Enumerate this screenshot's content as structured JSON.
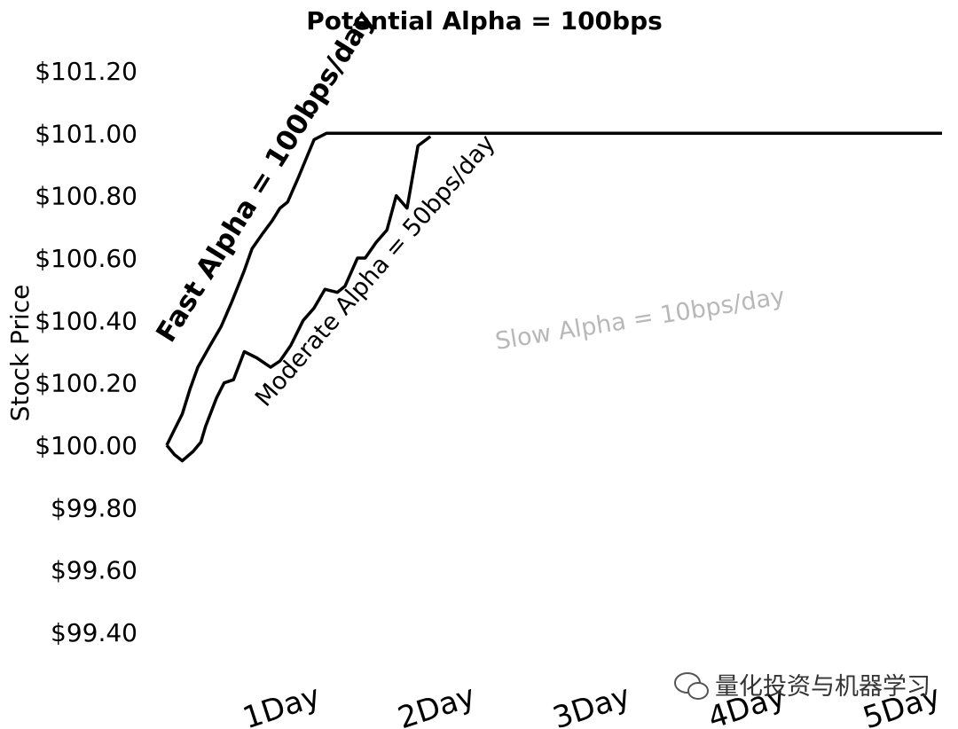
{
  "chart_data": {
    "type": "line",
    "title": "Potential Alpha = 100bps",
    "ylabel": "Stock Price",
    "xlabel": "",
    "ylim": [
      99.4,
      101.2
    ],
    "xlim": [
      0,
      5
    ],
    "y_ticks": [
      101.2,
      101.0,
      100.8,
      100.6,
      100.4,
      100.2,
      100.0,
      99.8,
      99.6,
      99.4
    ],
    "y_tick_labels": [
      "$101.20",
      "$101.00",
      "$100.80",
      "$100.60",
      "$100.40",
      "$100.20",
      "$100.00",
      "$99.80",
      "$99.60",
      "$99.40"
    ],
    "x_tick_labels": [
      "1Day",
      "2Day",
      "3Day",
      "4Day",
      "5Day"
    ],
    "x_tick_values": [
      1,
      2,
      3,
      4,
      5
    ],
    "grid": false,
    "series": [
      {
        "values": [
          [
            0.0,
            100.0
          ],
          [
            0.05,
            100.05
          ],
          [
            0.1,
            100.1
          ],
          [
            0.15,
            100.18
          ],
          [
            0.2,
            100.25
          ],
          [
            0.28,
            100.32
          ],
          [
            0.35,
            100.38
          ],
          [
            0.42,
            100.46
          ],
          [
            0.5,
            100.56
          ],
          [
            0.55,
            100.63
          ],
          [
            0.62,
            100.68
          ],
          [
            0.68,
            100.72
          ],
          [
            0.73,
            100.76
          ],
          [
            0.78,
            100.78
          ],
          [
            0.85,
            100.86
          ],
          [
            0.9,
            100.92
          ],
          [
            0.95,
            100.98
          ],
          [
            1.03,
            101.0
          ],
          [
            5.0,
            101.0
          ]
        ]
      },
      {
        "values": [
          [
            0.0,
            100.0
          ],
          [
            0.05,
            99.97
          ],
          [
            0.1,
            99.95
          ],
          [
            0.17,
            99.98
          ],
          [
            0.22,
            100.01
          ],
          [
            0.25,
            100.06
          ],
          [
            0.32,
            100.15
          ],
          [
            0.37,
            100.2
          ],
          [
            0.43,
            100.21
          ],
          [
            0.5,
            100.3
          ],
          [
            0.58,
            100.28
          ],
          [
            0.67,
            100.25
          ],
          [
            0.73,
            100.27
          ],
          [
            0.8,
            100.32
          ],
          [
            0.88,
            100.4
          ],
          [
            0.95,
            100.44
          ],
          [
            1.02,
            100.5
          ],
          [
            1.1,
            100.49
          ],
          [
            1.15,
            100.51
          ],
          [
            1.23,
            100.6
          ],
          [
            1.28,
            100.6
          ],
          [
            1.35,
            100.65
          ],
          [
            1.42,
            100.69
          ],
          [
            1.48,
            100.8
          ],
          [
            1.55,
            100.76
          ],
          [
            1.62,
            100.96
          ],
          [
            1.7,
            100.99
          ]
        ]
      }
    ],
    "annotations": [
      "Fast Alpha = 100bps/day",
      "Moderate Alpha = 50bps/day",
      "Slow Alpha = 10bps/day"
    ]
  },
  "watermark": "量化投资与机器学习",
  "colors": {
    "line": "#000000",
    "faint_text": "#b8b8b8",
    "background": "#ffffff"
  },
  "icons": {
    "watermark_icon": "chat-bubble-icon"
  }
}
